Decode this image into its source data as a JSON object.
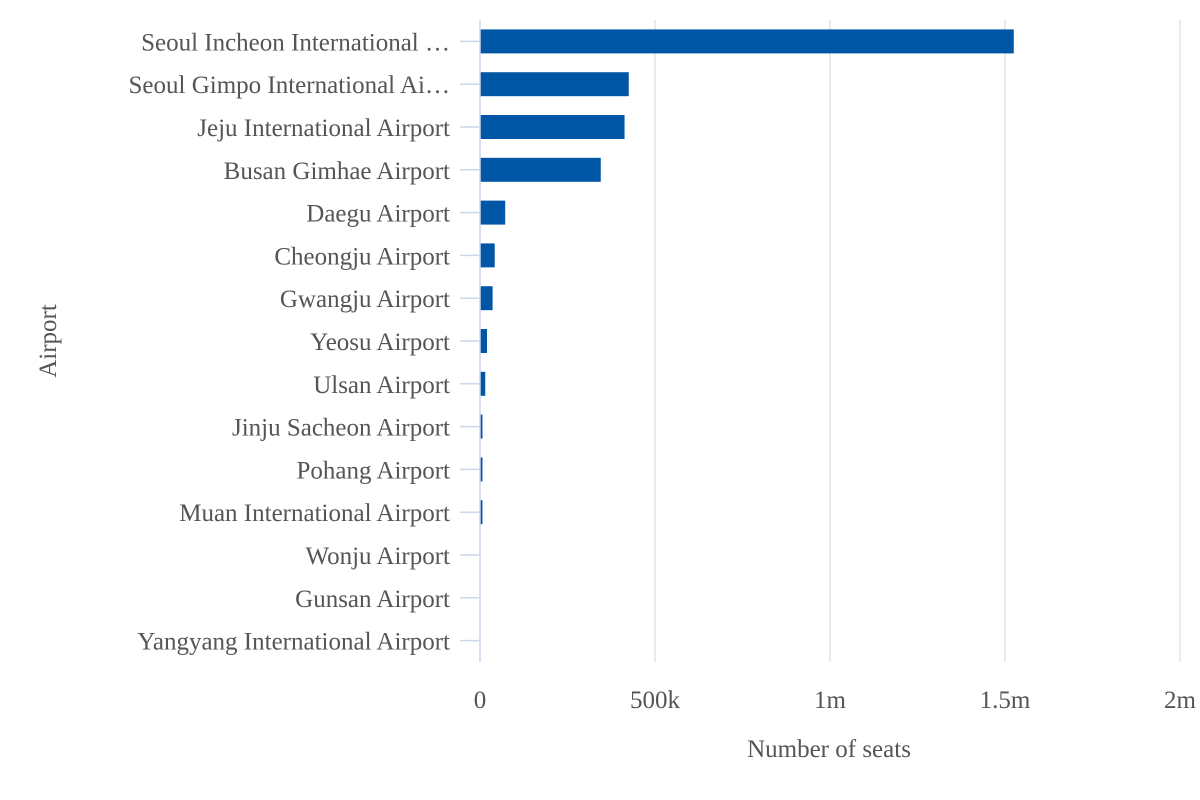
{
  "chart_data": {
    "type": "bar",
    "orientation": "horizontal",
    "title": "",
    "xlabel": "Number of seats",
    "ylabel": "Airport",
    "xlim": [
      0,
      2000000
    ],
    "x_ticks": [
      0,
      500000,
      1000000,
      1500000,
      2000000
    ],
    "x_tick_labels": [
      "0",
      "500k",
      "1m",
      "1.5m",
      "2m"
    ],
    "grid": true,
    "legend": "none",
    "bar_color": "#0055a5",
    "categories": [
      "Seoul Incheon International …",
      "Seoul Gimpo International Ai…",
      "Jeju International Airport",
      "Busan Gimhae Airport",
      "Daegu Airport",
      "Cheongju Airport",
      "Gwangju Airport",
      "Yeosu Airport",
      "Ulsan Airport",
      "Jinju Sacheon Airport",
      "Pohang Airport",
      "Muan International Airport",
      "Wonju Airport",
      "Gunsan Airport",
      "Yangyang International Airport"
    ],
    "values": [
      1525000,
      425000,
      413000,
      345000,
      72000,
      42000,
      36000,
      20000,
      15000,
      7000,
      7000,
      7000,
      0,
      0,
      0
    ]
  }
}
